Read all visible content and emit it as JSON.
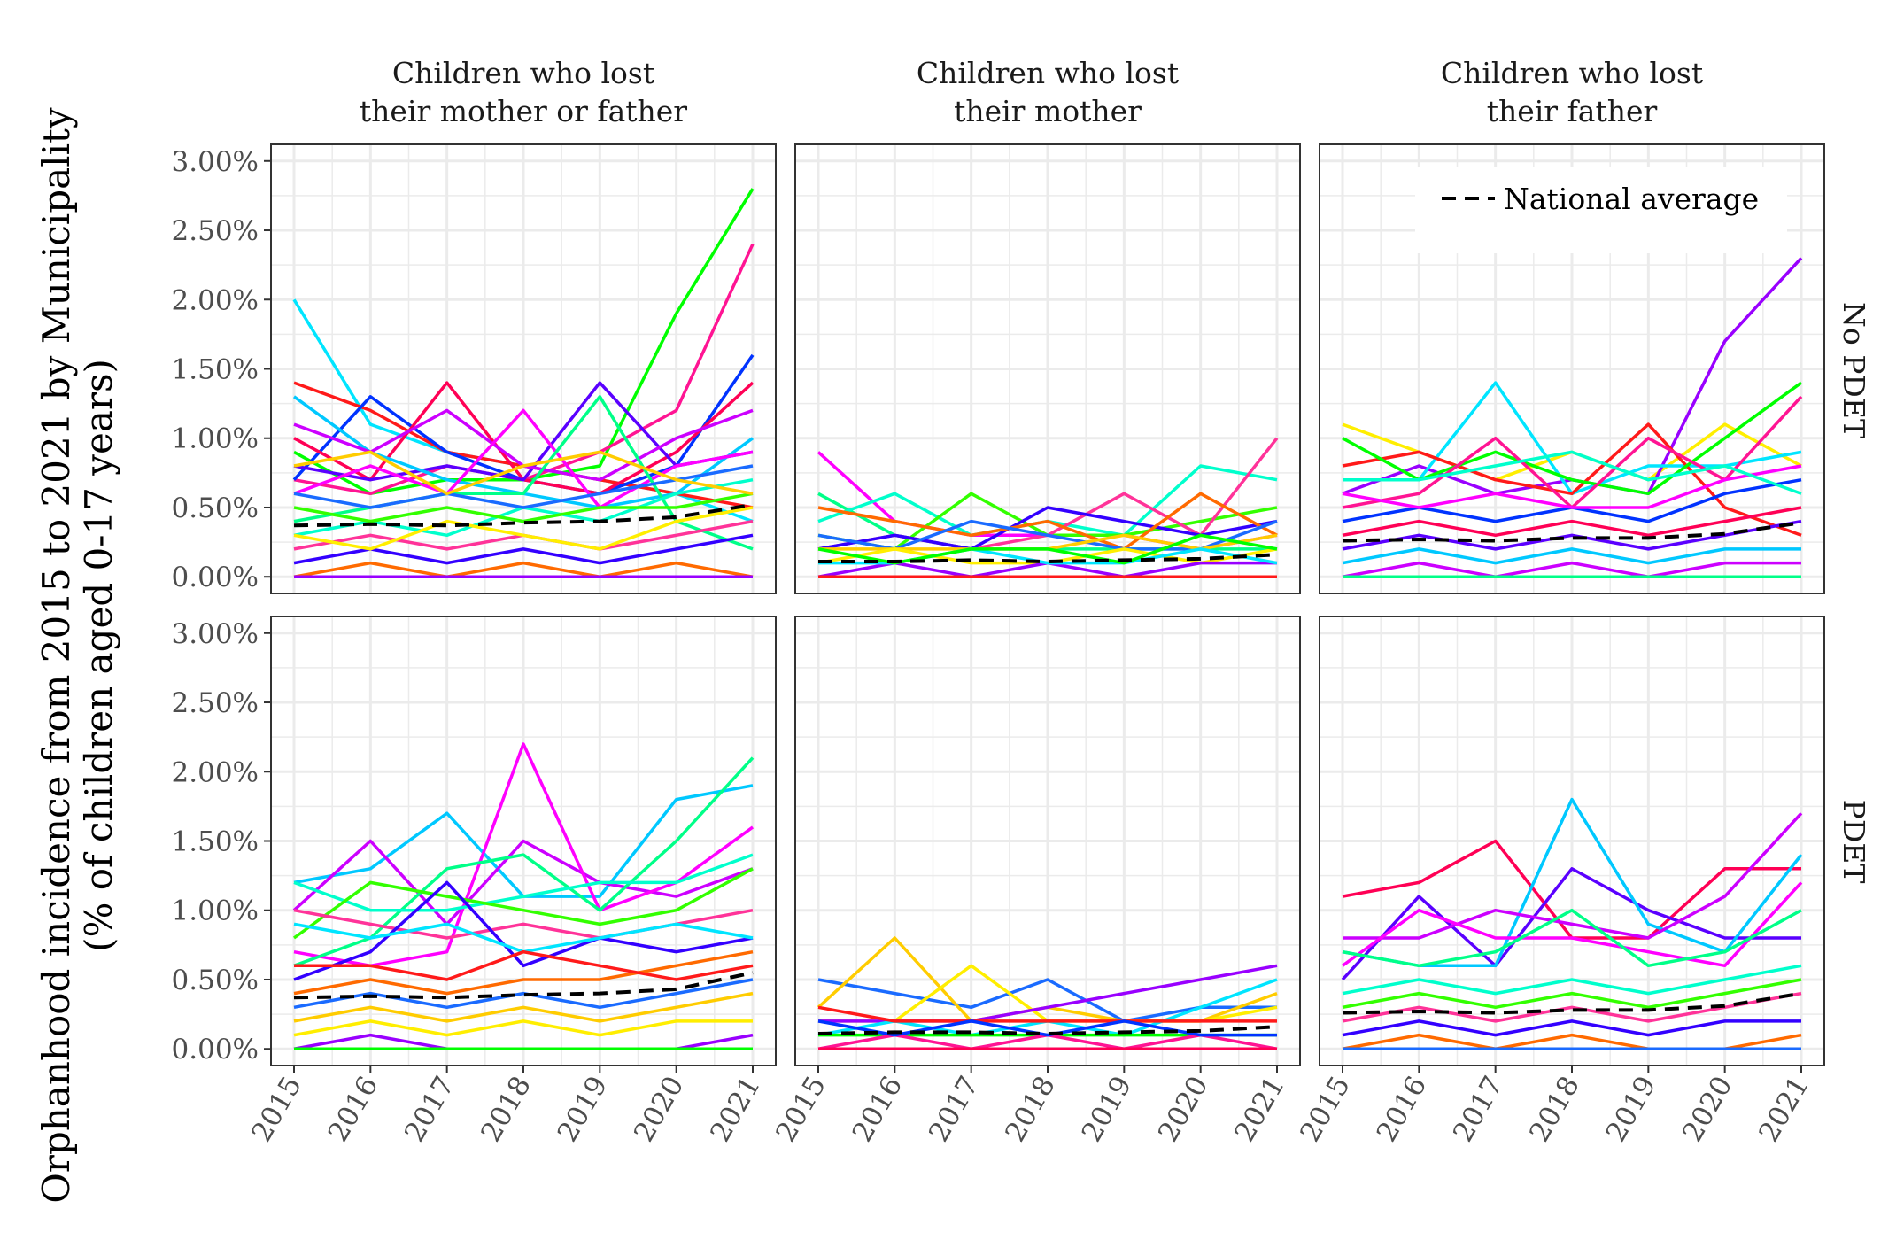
{
  "chart_data": {
    "type": "line",
    "facet_columns": [
      [
        "Children who lost",
        "their mother or father"
      ],
      [
        "Children who lost",
        "their mother"
      ],
      [
        "Children who lost",
        "their father"
      ]
    ],
    "facet_rows": [
      "No PDET",
      "PDET"
    ],
    "x": [
      "2015",
      "2016",
      "2017",
      "2018",
      "2019",
      "2020",
      "2021"
    ],
    "y_tick_labels": [
      "0.00%",
      "0.50%",
      "1.00%",
      "1.50%",
      "2.00%",
      "2.50%",
      "3.00%"
    ],
    "y_ticks": [
      0,
      0.5,
      1.0,
      1.5,
      2.0,
      2.5,
      3.0
    ],
    "ylim": [
      -0.12,
      3.12
    ],
    "ylabel_lines": [
      "Orphanhood incidence from 2015 to 2021 by Municipality",
      "(% of children aged 0-17 years)"
    ],
    "xlabel": "",
    "grid": true,
    "legend": {
      "position": "top-right",
      "entries": [
        "National average"
      ]
    },
    "national_average": {
      "name": "National average",
      "panels": [
        [
          0.37,
          0.38,
          0.37,
          0.39,
          0.4,
          0.43,
          0.52
        ],
        [
          0.11,
          0.11,
          0.12,
          0.11,
          0.12,
          0.13,
          0.16
        ],
        [
          0.26,
          0.27,
          0.26,
          0.28,
          0.28,
          0.31,
          0.39
        ],
        [
          0.37,
          0.38,
          0.37,
          0.39,
          0.4,
          0.43,
          0.55
        ],
        [
          0.11,
          0.12,
          0.12,
          0.11,
          0.12,
          0.13,
          0.16
        ],
        [
          0.26,
          0.27,
          0.26,
          0.28,
          0.28,
          0.31,
          0.4
        ]
      ]
    },
    "municipality_panels": [
      [
        [
          2.0,
          1.1,
          0.9,
          0.8,
          0.7,
          0.6,
          0.4
        ],
        [
          1.4,
          1.2,
          0.9,
          0.8,
          0.7,
          0.6,
          0.5
        ],
        [
          0.9,
          0.6,
          0.7,
          0.7,
          0.8,
          1.9,
          2.8
        ],
        [
          0.7,
          0.6,
          0.8,
          0.7,
          0.9,
          1.2,
          2.4
        ],
        [
          0.7,
          1.3,
          0.9,
          0.7,
          0.6,
          0.8,
          1.6
        ],
        [
          1.0,
          0.7,
          1.4,
          0.7,
          0.6,
          0.9,
          1.4
        ],
        [
          0.8,
          0.7,
          0.8,
          0.7,
          1.4,
          0.8,
          0.9
        ],
        [
          1.3,
          0.9,
          0.7,
          0.6,
          0.5,
          0.6,
          1.0
        ],
        [
          1.1,
          0.9,
          1.2,
          0.8,
          0.7,
          1.0,
          1.2
        ],
        [
          0.6,
          0.8,
          0.6,
          1.2,
          0.5,
          0.8,
          0.9
        ],
        [
          0.4,
          0.5,
          0.6,
          0.6,
          1.3,
          0.4,
          0.2
        ],
        [
          0.3,
          0.4,
          0.3,
          0.5,
          0.4,
          0.6,
          0.7
        ],
        [
          0.5,
          0.4,
          0.5,
          0.4,
          0.5,
          0.5,
          0.6
        ],
        [
          0.2,
          0.3,
          0.2,
          0.3,
          0.2,
          0.3,
          0.4
        ],
        [
          0.1,
          0.2,
          0.1,
          0.2,
          0.1,
          0.2,
          0.3
        ],
        [
          0.0,
          0.1,
          0.0,
          0.1,
          0.0,
          0.1,
          0.0
        ],
        [
          0.6,
          0.5,
          0.6,
          0.5,
          0.6,
          0.7,
          0.8
        ],
        [
          0.8,
          0.9,
          0.6,
          0.8,
          0.9,
          0.7,
          0.6
        ],
        [
          0.3,
          0.2,
          0.4,
          0.3,
          0.2,
          0.4,
          0.5
        ],
        [
          0.0,
          0.0,
          0.0,
          0.0,
          0.0,
          0.0,
          0.0
        ]
      ],
      [
        [
          0.9,
          0.4,
          0.3,
          0.3,
          0.3,
          0.2,
          0.3
        ],
        [
          0.6,
          0.3,
          0.2,
          0.2,
          0.2,
          0.2,
          0.2
        ],
        [
          0.4,
          0.6,
          0.3,
          0.4,
          0.3,
          0.8,
          0.7
        ],
        [
          0.3,
          0.2,
          0.6,
          0.3,
          0.3,
          0.4,
          0.5
        ],
        [
          0.2,
          0.3,
          0.2,
          0.3,
          0.6,
          0.3,
          1.0
        ],
        [
          0.2,
          0.3,
          0.2,
          0.5,
          0.4,
          0.3,
          0.4
        ],
        [
          0.5,
          0.4,
          0.3,
          0.4,
          0.2,
          0.6,
          0.3
        ],
        [
          0.3,
          0.2,
          0.4,
          0.3,
          0.2,
          0.2,
          0.4
        ],
        [
          0.2,
          0.2,
          0.2,
          0.2,
          0.3,
          0.2,
          0.3
        ],
        [
          0.1,
          0.2,
          0.1,
          0.1,
          0.2,
          0.1,
          0.2
        ],
        [
          0.0,
          0.1,
          0.0,
          0.1,
          0.0,
          0.1,
          0.1
        ],
        [
          0.1,
          0.1,
          0.2,
          0.1,
          0.1,
          0.2,
          0.1
        ],
        [
          0.0,
          0.0,
          0.0,
          0.0,
          0.0,
          0.0,
          0.0
        ],
        [
          0.2,
          0.1,
          0.2,
          0.2,
          0.1,
          0.3,
          0.2
        ]
      ],
      [
        [
          1.1,
          0.9,
          0.7,
          0.9,
          0.7,
          1.1,
          0.8
        ],
        [
          0.6,
          0.8,
          0.6,
          0.7,
          0.6,
          1.7,
          2.3
        ],
        [
          0.7,
          0.7,
          1.4,
          0.6,
          0.8,
          0.8,
          0.9
        ],
        [
          0.8,
          0.9,
          0.7,
          0.6,
          1.1,
          0.5,
          0.3
        ],
        [
          1.0,
          0.7,
          0.9,
          0.7,
          0.6,
          1.0,
          1.4
        ],
        [
          0.5,
          0.6,
          1.0,
          0.5,
          1.0,
          0.7,
          1.3
        ],
        [
          0.4,
          0.5,
          0.4,
          0.5,
          0.4,
          0.6,
          0.7
        ],
        [
          0.3,
          0.4,
          0.3,
          0.4,
          0.3,
          0.4,
          0.5
        ],
        [
          0.2,
          0.3,
          0.2,
          0.3,
          0.2,
          0.3,
          0.4
        ],
        [
          0.1,
          0.2,
          0.1,
          0.2,
          0.1,
          0.2,
          0.2
        ],
        [
          0.0,
          0.1,
          0.0,
          0.1,
          0.0,
          0.1,
          0.1
        ],
        [
          0.6,
          0.5,
          0.6,
          0.5,
          0.5,
          0.7,
          0.8
        ],
        [
          0.0,
          0.0,
          0.0,
          0.0,
          0.0,
          0.0,
          0.0
        ],
        [
          0.7,
          0.7,
          0.8,
          0.9,
          0.7,
          0.8,
          0.6
        ]
      ],
      [
        [
          1.2,
          1.3,
          1.7,
          1.1,
          1.1,
          1.8,
          1.9
        ],
        [
          1.0,
          1.5,
          0.9,
          1.5,
          1.2,
          1.1,
          1.3
        ],
        [
          0.7,
          0.6,
          0.7,
          2.2,
          1.0,
          1.2,
          1.6
        ],
        [
          0.6,
          0.8,
          1.3,
          1.4,
          1.0,
          1.5,
          2.1
        ],
        [
          1.2,
          1.0,
          1.0,
          1.1,
          1.2,
          1.2,
          1.4
        ],
        [
          0.8,
          1.2,
          1.1,
          1.0,
          0.9,
          1.0,
          1.3
        ],
        [
          1.0,
          0.9,
          0.8,
          0.9,
          0.8,
          0.9,
          1.0
        ],
        [
          0.5,
          0.7,
          1.2,
          0.6,
          0.8,
          0.7,
          0.8
        ],
        [
          0.4,
          0.5,
          0.4,
          0.5,
          0.5,
          0.6,
          0.7
        ],
        [
          0.3,
          0.4,
          0.3,
          0.4,
          0.3,
          0.4,
          0.5
        ],
        [
          0.2,
          0.3,
          0.2,
          0.3,
          0.2,
          0.3,
          0.4
        ],
        [
          0.1,
          0.2,
          0.1,
          0.2,
          0.1,
          0.2,
          0.2
        ],
        [
          0.0,
          0.1,
          0.0,
          0.0,
          0.0,
          0.0,
          0.1
        ],
        [
          0.9,
          0.8,
          0.9,
          0.7,
          0.8,
          0.9,
          0.8
        ],
        [
          0.6,
          0.6,
          0.5,
          0.7,
          0.6,
          0.5,
          0.6
        ],
        [
          0.0,
          0.0,
          0.0,
          0.0,
          0.0,
          0.0,
          0.0
        ]
      ],
      [
        [
          0.5,
          0.4,
          0.3,
          0.5,
          0.2,
          0.3,
          0.3
        ],
        [
          0.3,
          0.8,
          0.2,
          0.3,
          0.2,
          0.2,
          0.4
        ],
        [
          0.2,
          0.2,
          0.6,
          0.2,
          0.2,
          0.2,
          0.3
        ],
        [
          0.2,
          0.2,
          0.2,
          0.3,
          0.4,
          0.5,
          0.6
        ],
        [
          0.1,
          0.2,
          0.1,
          0.2,
          0.1,
          0.3,
          0.5
        ],
        [
          0.3,
          0.2,
          0.2,
          0.2,
          0.2,
          0.2,
          0.2
        ],
        [
          0.1,
          0.1,
          0.1,
          0.1,
          0.1,
          0.1,
          0.1
        ],
        [
          0.0,
          0.1,
          0.0,
          0.1,
          0.0,
          0.1,
          0.0
        ],
        [
          0.2,
          0.1,
          0.2,
          0.1,
          0.2,
          0.1,
          0.1
        ],
        [
          0.0,
          0.0,
          0.0,
          0.0,
          0.0,
          0.0,
          0.0
        ]
      ],
      [
        [
          1.1,
          1.2,
          1.5,
          0.8,
          0.8,
          1.3,
          1.3
        ],
        [
          0.5,
          1.1,
          0.6,
          1.3,
          1.0,
          0.8,
          0.8
        ],
        [
          0.7,
          0.6,
          0.6,
          1.8,
          0.9,
          0.7,
          1.4
        ],
        [
          0.8,
          0.8,
          1.0,
          0.9,
          0.8,
          1.1,
          1.7
        ],
        [
          0.6,
          1.0,
          0.8,
          0.8,
          0.7,
          0.6,
          1.2
        ],
        [
          0.7,
          0.6,
          0.7,
          1.0,
          0.6,
          0.7,
          1.0
        ],
        [
          0.4,
          0.5,
          0.4,
          0.5,
          0.4,
          0.5,
          0.6
        ],
        [
          0.3,
          0.4,
          0.3,
          0.4,
          0.3,
          0.4,
          0.5
        ],
        [
          0.2,
          0.3,
          0.2,
          0.3,
          0.2,
          0.3,
          0.4
        ],
        [
          0.1,
          0.2,
          0.1,
          0.2,
          0.1,
          0.2,
          0.2
        ],
        [
          0.0,
          0.1,
          0.0,
          0.1,
          0.0,
          0.0,
          0.1
        ],
        [
          0.0,
          0.0,
          0.0,
          0.0,
          0.0,
          0.0,
          0.0
        ]
      ]
    ]
  },
  "colors": {
    "panel_background": "#ffffff",
    "panel_border": "#333333",
    "grid": "#ebebeb",
    "national_average": "#000000",
    "series_palette": [
      "#00e5ff",
      "#ff1493",
      "#5a00ff",
      "#ff00ff",
      "#33ff00",
      "#ff6a00",
      "#ffee00",
      "#ff1a1a",
      "#0033ff",
      "#00c8ff",
      "#00ff88",
      "#ff3399",
      "#1a6bff",
      "#9900ff",
      "#00ff00",
      "#ff0055",
      "#cc00ff",
      "#00ffcc",
      "#3300ff",
      "#ffcc00"
    ]
  }
}
